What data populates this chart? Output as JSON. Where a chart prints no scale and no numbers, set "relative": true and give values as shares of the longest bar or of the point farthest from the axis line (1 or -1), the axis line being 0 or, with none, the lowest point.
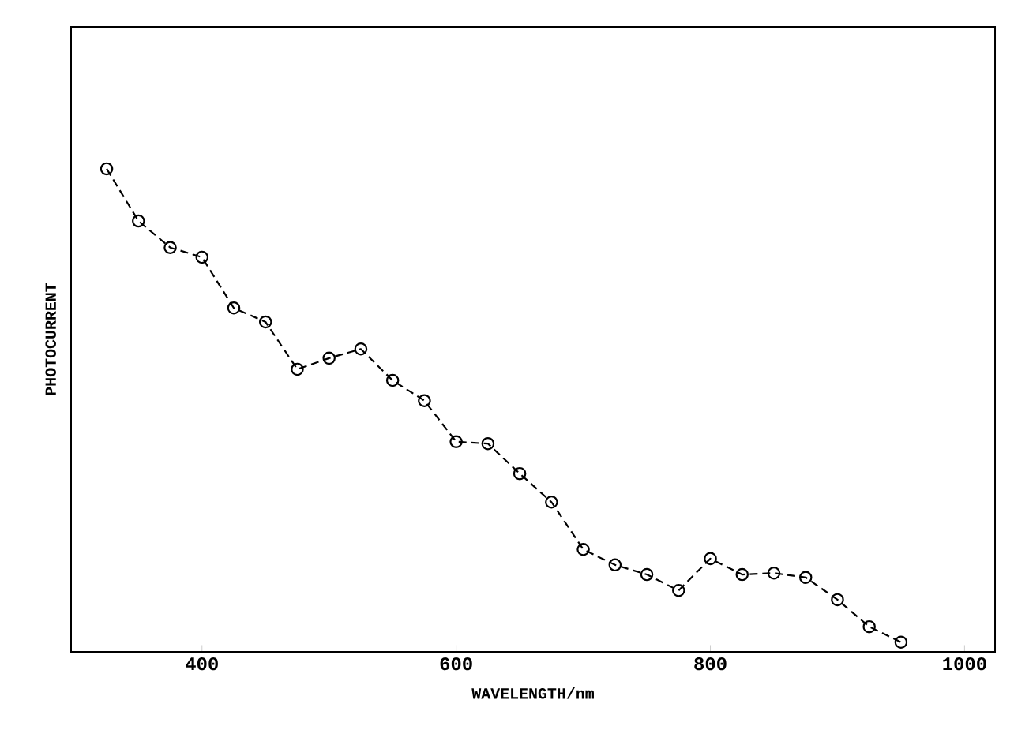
{
  "chart_data": {
    "type": "line",
    "xlabel": "WAVELENGTH/nm",
    "ylabel": "PHOTOCURRENT",
    "relative": true,
    "x": [
      325,
      350,
      375,
      400,
      425,
      450,
      475,
      500,
      525,
      550,
      575,
      600,
      625,
      650,
      675,
      700,
      725,
      750,
      775,
      800,
      825,
      850,
      875,
      900,
      925,
      950
    ],
    "series": [
      {
        "color": "#000000",
        "values": [
          1.0,
          0.892,
          0.837,
          0.817,
          0.712,
          0.683,
          0.585,
          0.608,
          0.627,
          0.562,
          0.52,
          0.435,
          0.431,
          0.369,
          0.31,
          0.212,
          0.18,
          0.16,
          0.127,
          0.193,
          0.16,
          0.163,
          0.154,
          0.108,
          0.052,
          0.02
        ]
      }
    ],
    "xlim": [
      297,
      1024
    ],
    "xticks": [
      400,
      600,
      800,
      1000
    ],
    "marker": "circle",
    "line_style": "dashed",
    "grid": false
  }
}
